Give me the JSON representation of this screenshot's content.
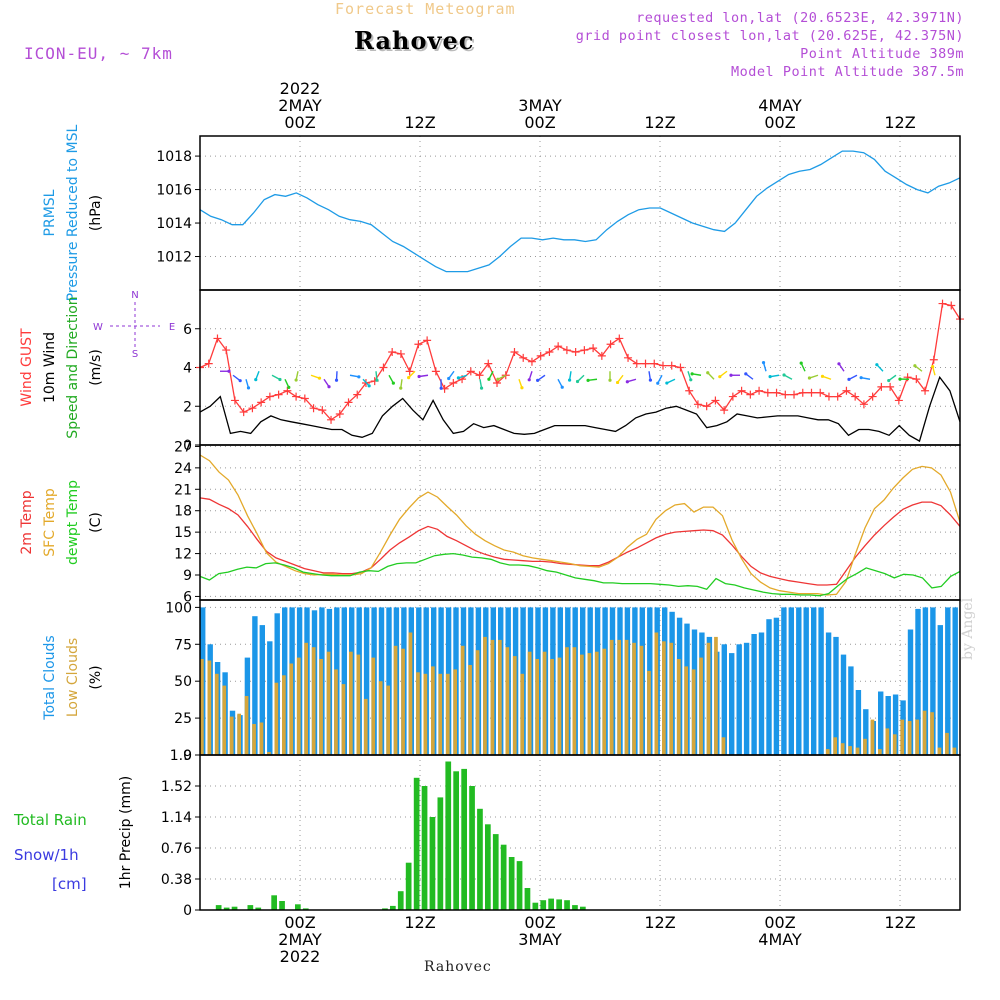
{
  "header": {
    "title": "Rahovec",
    "subtitle": "Forecast Meteogram",
    "model": "ICON-EU, ~ 7km",
    "requested": "requested lon,lat (20.6523E, 42.3971N)",
    "grid_point": "grid point closest lon,lat (20.625E, 42.375N)",
    "point_altitude": "Point Altitude 389m",
    "model_altitude": "Model Point Altitude 387.5m"
  },
  "footer": {
    "station": "Rahovec",
    "watermark": "by Angel"
  },
  "colors": {
    "pressure": "#1e9be6",
    "gust": "#ff3b3b",
    "wind": "#000000",
    "temp2m": "#ee3535",
    "sfc": "#e3a92a",
    "dewpt": "#22cc22",
    "total_clouds": "#1b96e8",
    "low_clouds": "#d4a63c",
    "rain": "#22bb22",
    "snow": "#3a3ae0",
    "axis_labels": "#8f36d4"
  },
  "time_axis": {
    "top_ticks": [
      {
        "t": 0,
        "lines": [
          "2022",
          "2MAY",
          "00Z"
        ]
      },
      {
        "t": 12,
        "lines": [
          "12Z"
        ]
      },
      {
        "t": 24,
        "lines": [
          "3MAY",
          "00Z"
        ]
      },
      {
        "t": 36,
        "lines": [
          "12Z"
        ]
      },
      {
        "t": 48,
        "lines": [
          "4MAY",
          "00Z"
        ]
      },
      {
        "t": 60,
        "lines": [
          "12Z"
        ]
      }
    ],
    "bottom_ticks": [
      {
        "t": 0,
        "lines": [
          "00Z",
          "2MAY",
          "2022"
        ]
      },
      {
        "t": 12,
        "lines": [
          "12Z"
        ]
      },
      {
        "t": 24,
        "lines": [
          "00Z",
          "3MAY"
        ]
      },
      {
        "t": 36,
        "lines": [
          "12Z"
        ]
      },
      {
        "t": 48,
        "lines": [
          "00Z",
          "4MAY"
        ]
      },
      {
        "t": 60,
        "lines": [
          "12Z"
        ]
      }
    ]
  },
  "chart_data": [
    {
      "type": "line",
      "name": "pressure",
      "ylabels": [
        {
          "text": "PRMSL",
          "color": "#1e9be6"
        },
        {
          "text": "Pressure Reduced to MSL",
          "color": "#1e9be6"
        },
        {
          "text": "(hPa)",
          "color": "#000"
        }
      ],
      "yticks": [
        1012,
        1014,
        1016,
        1018
      ],
      "ylim": [
        1010,
        1019.2
      ],
      "series": [
        {
          "values": [
            1014.8,
            1014.4,
            1014.2,
            1013.9,
            1013.9,
            1014.6,
            1015.4,
            1015.7,
            1015.6,
            1015.8,
            1015.5,
            1015.1,
            1014.8,
            1014.4,
            1014.2,
            1014.1,
            1013.9,
            1013.4,
            1012.9,
            1012.6,
            1012.2,
            1011.8,
            1011.4,
            1011.1,
            1011.1,
            1011.1,
            1011.3,
            1011.5,
            1012.0,
            1012.6,
            1013.1,
            1013.1,
            1013.0,
            1013.1,
            1013.0,
            1013.0,
            1012.9,
            1013.0,
            1013.6,
            1014.1,
            1014.5,
            1014.8,
            1014.9,
            1014.9,
            1014.6,
            1014.3,
            1014.0,
            1013.8,
            1013.6,
            1013.5,
            1014.0,
            1014.8,
            1015.6,
            1016.1,
            1016.5,
            1016.9,
            1017.1,
            1017.2,
            1017.5,
            1017.9,
            1018.3,
            1018.3,
            1018.2,
            1017.8,
            1017.1,
            1016.7,
            1016.3,
            1016.0,
            1015.8,
            1016.2,
            1016.4,
            1016.7
          ]
        }
      ]
    },
    {
      "type": "line",
      "name": "wind",
      "ylabels": [
        {
          "text": "Wind GUST",
          "color": "#ff3b3b"
        },
        {
          "text": "10m Wind",
          "color": "#000"
        },
        {
          "text": "Speed and Direction",
          "color": "#22aa22"
        },
        {
          "text": "(m/s)",
          "color": "#000"
        }
      ],
      "yticks": [
        0,
        2,
        4,
        6
      ],
      "ylim": [
        0,
        8
      ],
      "compass": {
        "n": "N",
        "w": "W",
        "e": "E",
        "s": "S"
      },
      "series": [
        {
          "name": "gust",
          "values": [
            4.0,
            4.2,
            5.5,
            4.9,
            2.3,
            1.7,
            1.9,
            2.2,
            2.5,
            2.6,
            2.8,
            2.5,
            2.4,
            1.9,
            1.8,
            1.3,
            1.6,
            2.2,
            2.6,
            3.2,
            3.3,
            4.0,
            4.8,
            4.7,
            3.8,
            5.2,
            5.4,
            3.8,
            2.9,
            3.2,
            3.4,
            3.8,
            3.6,
            4.2,
            3.2,
            3.6,
            4.8,
            4.5,
            4.3,
            4.6,
            4.8,
            5.1,
            4.9,
            4.8,
            4.9,
            5.0,
            4.6,
            5.2,
            5.5,
            4.5,
            4.2,
            4.2,
            4.2,
            4.1,
            4.1,
            4.0,
            2.8,
            2.1,
            2.0,
            2.3,
            1.8,
            2.5,
            2.8,
            2.6,
            2.8,
            2.7,
            2.7,
            2.6,
            2.6,
            2.7,
            2.7,
            2.7,
            2.5,
            2.5,
            2.8,
            2.5,
            2.1,
            2.5,
            3.0,
            3.0,
            2.3,
            3.5,
            3.4,
            2.8,
            4.4,
            7.3,
            7.2,
            6.5
          ]
        },
        {
          "name": "wind",
          "values": [
            1.7,
            2.0,
            2.5,
            0.6,
            0.7,
            0.6,
            1.2,
            1.5,
            1.3,
            1.2,
            1.1,
            1.0,
            0.9,
            0.8,
            0.8,
            0.5,
            0.4,
            0.6,
            1.5,
            2.0,
            2.4,
            1.8,
            1.3,
            2.3,
            1.3,
            0.6,
            0.7,
            1.1,
            0.9,
            1.0,
            0.8,
            0.6,
            0.55,
            0.6,
            0.8,
            1.0,
            1.0,
            1.0,
            1.0,
            0.9,
            0.8,
            0.7,
            1.0,
            1.4,
            1.6,
            1.7,
            1.9,
            2.0,
            1.8,
            1.6,
            0.9,
            1.0,
            1.2,
            1.6,
            1.5,
            1.4,
            1.45,
            1.5,
            1.5,
            1.5,
            1.4,
            1.3,
            1.3,
            1.1,
            0.5,
            0.8,
            0.8,
            0.7,
            0.5,
            1.0,
            0.5,
            0.2,
            2.0,
            3.5,
            2.8,
            1.2
          ]
        }
      ]
    },
    {
      "type": "line",
      "name": "temperature",
      "ylabels": [
        {
          "text": "2m Temp",
          "color": "#ee3535"
        },
        {
          "text": "SFC Temp",
          "color": "#e3a92a"
        },
        {
          "text": "dewpt Temp",
          "color": "#22cc22"
        },
        {
          "text": "(C)",
          "color": "#000"
        }
      ],
      "yticks": [
        6,
        9,
        12,
        15,
        18,
        21,
        24,
        27
      ],
      "ylim": [
        5.5,
        27.2
      ],
      "series": [
        {
          "name": "2m",
          "values": [
            19.8,
            19.6,
            18.9,
            18.3,
            17.4,
            15.8,
            14.0,
            12.3,
            11.4,
            10.9,
            10.4,
            9.9,
            9.6,
            9.3,
            9.3,
            9.2,
            9.2,
            9.4,
            10.0,
            11.2,
            12.5,
            13.5,
            14.3,
            15.2,
            15.8,
            15.4,
            14.4,
            13.8,
            13.1,
            12.4,
            11.9,
            11.5,
            11.2,
            11.1,
            11.0,
            10.9,
            10.9,
            10.8,
            10.6,
            10.5,
            10.4,
            10.3,
            10.3,
            10.8,
            11.5,
            12.2,
            12.8,
            13.5,
            14.2,
            14.7,
            15.0,
            15.1,
            15.2,
            15.3,
            15.2,
            14.6,
            13.2,
            11.6,
            10.2,
            9.3,
            8.8,
            8.5,
            8.2,
            8.0,
            7.8,
            7.6,
            7.6,
            7.7,
            9.6,
            11.5,
            13.1,
            14.6,
            15.9,
            17.1,
            18.2,
            18.8,
            19.2,
            19.2,
            18.7,
            17.4,
            15.8
          ]
        },
        {
          "name": "sfc",
          "values": [
            25.8,
            25.0,
            23.4,
            22.3,
            20.2,
            17.3,
            14.8,
            12.1,
            10.8,
            10.2,
            9.6,
            9.2,
            9.0,
            9.1,
            9.1,
            9.0,
            9.0,
            9.2,
            10.0,
            12.2,
            14.6,
            16.8,
            18.4,
            19.8,
            20.6,
            19.9,
            18.6,
            17.4,
            15.9,
            14.7,
            13.8,
            13.1,
            12.5,
            12.2,
            11.7,
            11.4,
            11.2,
            11.0,
            10.8,
            10.6,
            10.3,
            10.2,
            10.1,
            10.6,
            11.5,
            12.9,
            14.0,
            14.7,
            16.8,
            18.0,
            18.8,
            19.0,
            17.8,
            18.5,
            18.5,
            17.3,
            13.9,
            11.3,
            9.2,
            8.0,
            7.2,
            6.8,
            6.6,
            6.4,
            6.4,
            6.4,
            6.2,
            6.3,
            8.1,
            12.0,
            15.6,
            18.3,
            19.5,
            21.2,
            22.6,
            23.8,
            24.2,
            24.0,
            23.0,
            20.6,
            16.4
          ]
        },
        {
          "name": "dewpt",
          "values": [
            8.8,
            8.3,
            9.2,
            9.4,
            9.8,
            10.1,
            10.0,
            10.6,
            10.7,
            10.4,
            10.0,
            9.4,
            9.2,
            9.0,
            8.9,
            8.9,
            8.9,
            9.4,
            9.6,
            9.5,
            10.2,
            10.6,
            10.7,
            10.7,
            11.2,
            11.7,
            11.9,
            12.0,
            11.8,
            11.5,
            11.4,
            11.2,
            10.7,
            10.4,
            10.4,
            10.3,
            10.0,
            9.6,
            9.4,
            9.0,
            8.6,
            8.4,
            8.2,
            7.9,
            7.9,
            7.8,
            7.8,
            7.8,
            7.8,
            7.7,
            7.6,
            7.4,
            7.5,
            7.4,
            7.0,
            8.5,
            7.8,
            7.6,
            7.2,
            6.9,
            6.6,
            6.4,
            6.3,
            6.3,
            6.2,
            6.2,
            6.1,
            6.4,
            7.5,
            8.5,
            9.2,
            10.0,
            9.6,
            9.2,
            8.6,
            9.1,
            9.0,
            8.6,
            7.2,
            7.4,
            8.8,
            9.5
          ]
        }
      ]
    },
    {
      "type": "bar",
      "name": "clouds",
      "ylabels": [
        {
          "text": "Total Clouds",
          "color": "#1b96e8"
        },
        {
          "text": "Low Clouds",
          "color": "#d4a63c"
        },
        {
          "text": "(%)",
          "color": "#000"
        }
      ],
      "yticks": [
        0,
        25,
        50,
        75,
        100
      ],
      "ylim": [
        0,
        105
      ],
      "series": [
        {
          "name": "total",
          "values": [
            100,
            75,
            63,
            56,
            30,
            27,
            66,
            94,
            88,
            77,
            96,
            100,
            100,
            100,
            100,
            98,
            100,
            99,
            100,
            100,
            100,
            100,
            100,
            100,
            100,
            100,
            100,
            100,
            100,
            100,
            100,
            100,
            100,
            100,
            100,
            100,
            100,
            100,
            100,
            100,
            100,
            100,
            100,
            100,
            100,
            100,
            100,
            100,
            100,
            100,
            100,
            100,
            100,
            100,
            100,
            100,
            100,
            100,
            100,
            100,
            100,
            100,
            100,
            97,
            93,
            89,
            85,
            83,
            80,
            70,
            75,
            69,
            75,
            76,
            82,
            83,
            92,
            93,
            100,
            100,
            100,
            100,
            100,
            100,
            83,
            80,
            68,
            60,
            44,
            31,
            23,
            43,
            40,
            41,
            37,
            85,
            99,
            100,
            100,
            88,
            100,
            100
          ]
        },
        {
          "name": "low",
          "values": [
            65,
            64,
            55,
            47,
            26,
            28,
            40,
            21,
            22,
            2,
            49,
            54,
            62,
            66,
            76,
            73,
            65,
            70,
            58,
            48,
            70,
            68,
            38,
            66,
            50,
            47,
            74,
            72,
            83,
            56,
            55,
            60,
            55,
            55,
            58,
            74,
            61,
            71,
            80,
            78,
            78,
            73,
            67,
            55,
            70,
            65,
            70,
            65,
            66,
            73,
            73,
            68,
            69,
            70,
            72,
            78,
            78,
            78,
            76,
            74,
            57,
            83,
            77,
            76,
            65,
            60,
            58,
            66,
            76,
            80,
            12,
            0,
            0,
            0,
            0,
            0,
            0,
            0,
            0,
            0,
            0,
            0,
            0,
            0,
            4,
            12,
            8,
            6,
            5,
            11,
            24,
            4,
            18,
            14,
            24,
            23,
            24,
            30,
            29,
            5,
            15,
            5
          ]
        }
      ]
    },
    {
      "type": "bar",
      "name": "precip",
      "ylabels": [
        {
          "text": "1hr Precip (mm)",
          "color": "#000"
        }
      ],
      "side_labels": [
        {
          "text": "Total  Rain",
          "color": "#22bb22"
        },
        {
          "text": "Snow/1h",
          "color": "#3a3ae0"
        },
        {
          "text": "[cm]",
          "color": "#3a3ae0"
        }
      ],
      "yticks": [
        "0",
        "0.38",
        "0.76",
        "1.14",
        "1.52",
        "1.9"
      ],
      "ylim": [
        0,
        1.9
      ],
      "series": [
        {
          "name": "rain",
          "values": [
            0,
            0,
            0.06,
            0.03,
            0.04,
            0,
            0.06,
            0.03,
            0,
            0.18,
            0.11,
            0,
            0.07,
            0.02,
            0,
            0,
            0,
            0,
            0,
            0,
            0,
            0,
            0,
            0.02,
            0.05,
            0.23,
            0.58,
            1.62,
            1.52,
            1.14,
            1.38,
            1.82,
            1.7,
            1.73,
            1.52,
            1.24,
            1.05,
            0.93,
            0.8,
            0.65,
            0.6,
            0.27,
            0.09,
            0.12,
            0.14,
            0.13,
            0.12,
            0.06,
            0.04,
            0,
            0,
            0,
            0,
            0,
            0,
            0,
            0,
            0,
            0,
            0,
            0,
            0,
            0,
            0,
            0,
            0,
            0,
            0,
            0,
            0,
            0,
            0,
            0,
            0,
            0,
            0,
            0,
            0,
            0,
            0,
            0,
            0,
            0,
            0,
            0,
            0,
            0,
            0,
            0,
            0,
            0,
            0,
            0,
            0,
            0,
            0
          ]
        }
      ]
    }
  ]
}
